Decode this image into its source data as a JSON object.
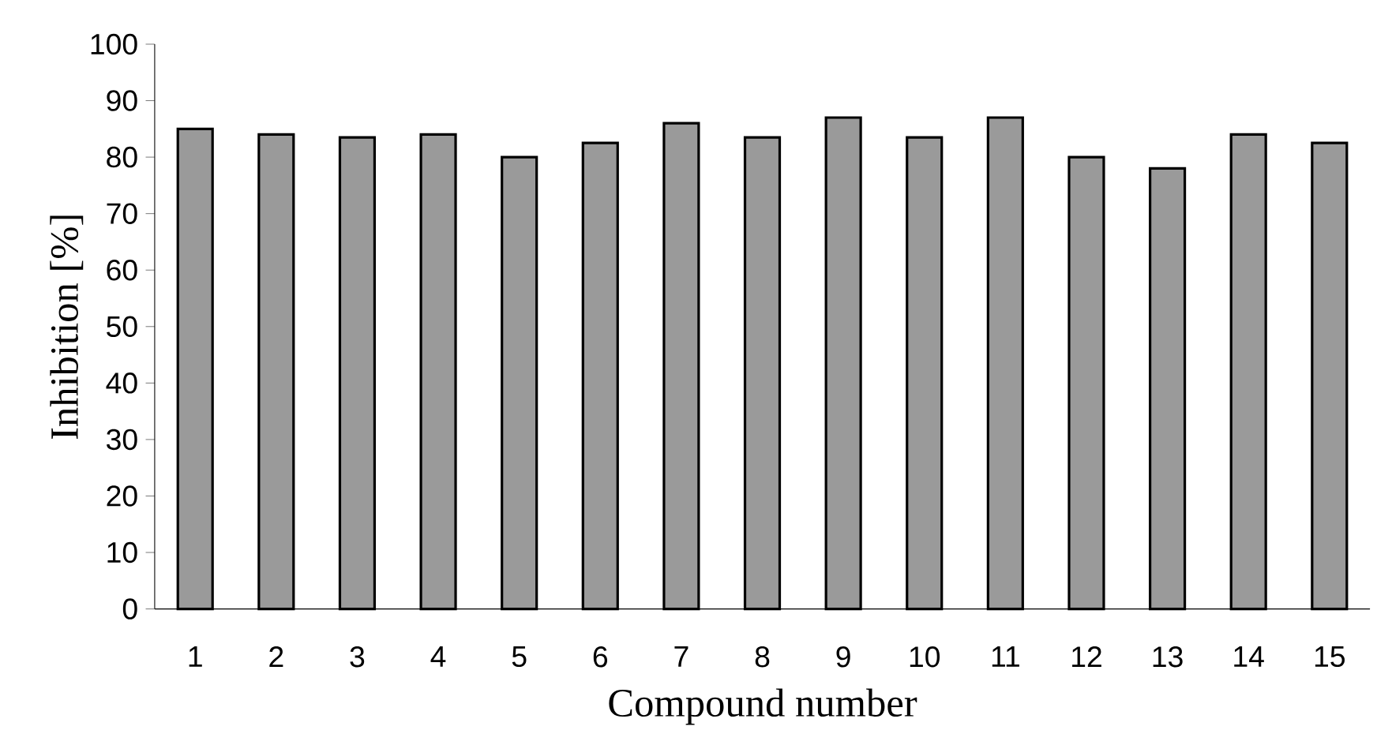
{
  "chart_data": {
    "type": "bar",
    "xlabel": "Compound number",
    "ylabel": "Inhibition [%]",
    "categories": [
      "1",
      "2",
      "3",
      "4",
      "5",
      "6",
      "7",
      "8",
      "9",
      "10",
      "11",
      "12",
      "13",
      "14",
      "15"
    ],
    "values": [
      85,
      84,
      83.5,
      84,
      80,
      82.5,
      86,
      83.5,
      87,
      83.5,
      87,
      80,
      78,
      84,
      82.5
    ],
    "color": "#9a9a9a",
    "ylim": [
      0,
      100
    ],
    "yticks": [
      0,
      10,
      20,
      30,
      40,
      50,
      60,
      70,
      80,
      90,
      100
    ],
    "grid": false
  }
}
